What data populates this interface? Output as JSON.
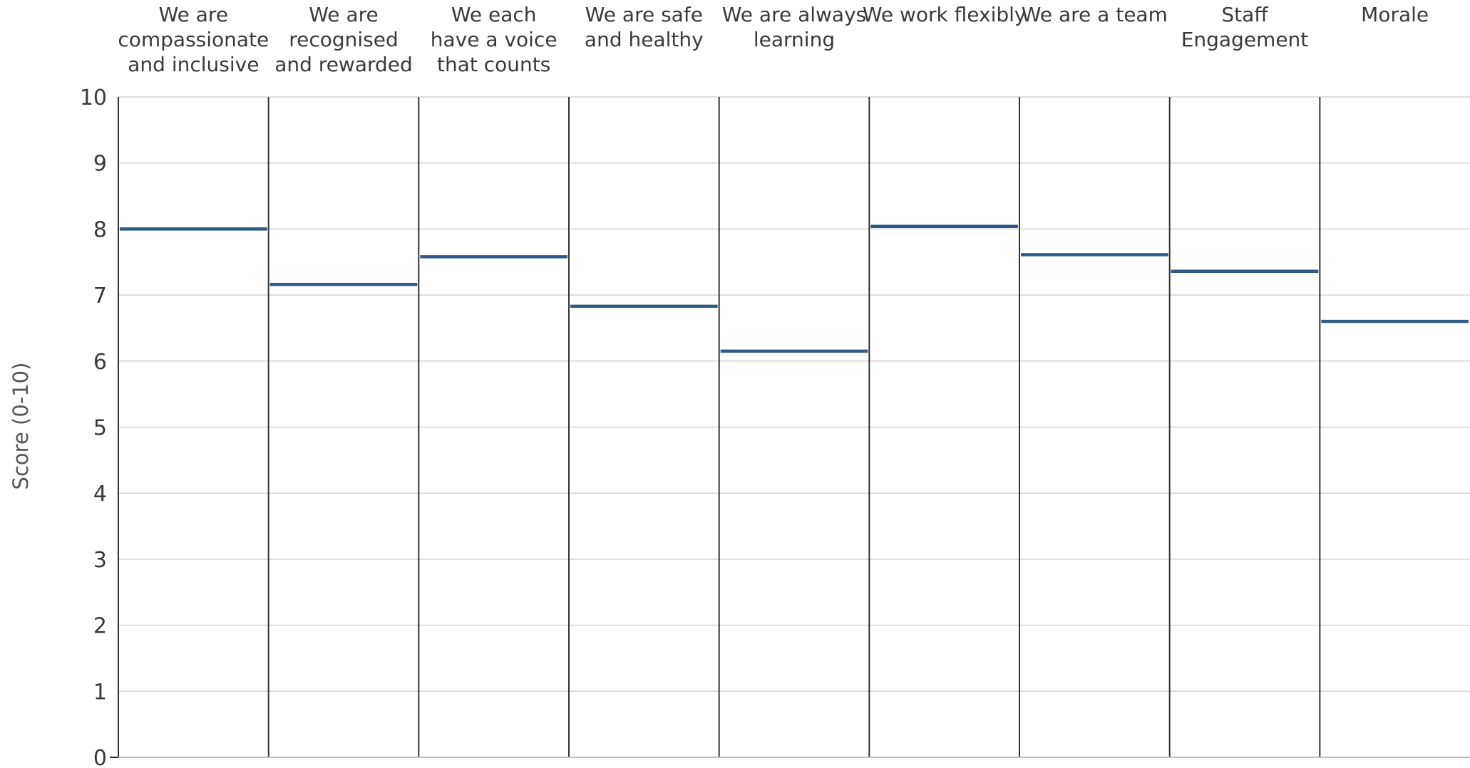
{
  "chart_data": {
    "type": "panel-scores",
    "title": "",
    "xlabel": "",
    "ylabel": "Score (0-10)",
    "ylim": [
      0,
      10
    ],
    "yticks": [
      0,
      1,
      2,
      3,
      4,
      5,
      6,
      7,
      8,
      9,
      10
    ],
    "grid": true,
    "categories": [
      [
        "We are",
        "compassionate",
        "and inclusive"
      ],
      [
        "We are",
        "recognised",
        "and rewarded"
      ],
      [
        "We each",
        "have a voice",
        "that counts"
      ],
      [
        "We are safe",
        "and healthy"
      ],
      [
        "We are always",
        "learning"
      ],
      [
        "We work flexibly"
      ],
      [
        "We are a team"
      ],
      [
        "Staff",
        "Engagement"
      ],
      [
        "Morale"
      ]
    ],
    "series": [
      {
        "values": [
          8.0,
          7.16,
          7.58,
          6.83,
          6.15,
          8.04,
          7.61,
          7.36,
          6.6
        ]
      }
    ],
    "colors": {
      "series": "#2e5a87",
      "grid": "#d4d4d4",
      "divider": "#333333",
      "axis": "#bdbdbd",
      "text": "#3a3a3a"
    }
  }
}
